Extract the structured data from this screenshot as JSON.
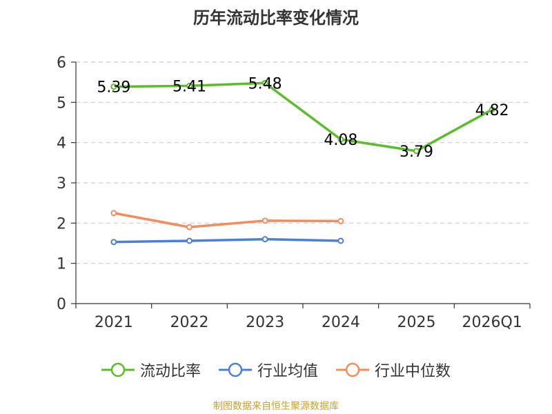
{
  "chart_data": {
    "type": "line",
    "title": "历年流动比率变化情况",
    "categories": [
      "2021",
      "2022",
      "2023",
      "2024",
      "2025",
      "2026Q1"
    ],
    "ylim": [
      0,
      6
    ],
    "yticks": [
      "0",
      "1",
      "2",
      "3",
      "4",
      "5",
      "6"
    ],
    "grid": true,
    "legend_position": "bottom",
    "series": [
      {
        "name": "流动比率",
        "color": "#5bbd2a",
        "values": [
          5.39,
          5.41,
          5.48,
          4.08,
          3.79,
          4.82
        ],
        "labels": [
          "5.39",
          "5.41",
          "5.48",
          "4.08",
          "3.79",
          "4.82"
        ]
      },
      {
        "name": "行业均值",
        "color": "#4a7fd9",
        "values": [
          1.53,
          1.56,
          1.6,
          1.56,
          null,
          null
        ]
      },
      {
        "name": "行业中位数",
        "color": "#f28c5a",
        "values": [
          2.25,
          1.9,
          2.06,
          2.05,
          null,
          null
        ]
      }
    ]
  },
  "footer": "制图数据来自恒生聚源数据库"
}
